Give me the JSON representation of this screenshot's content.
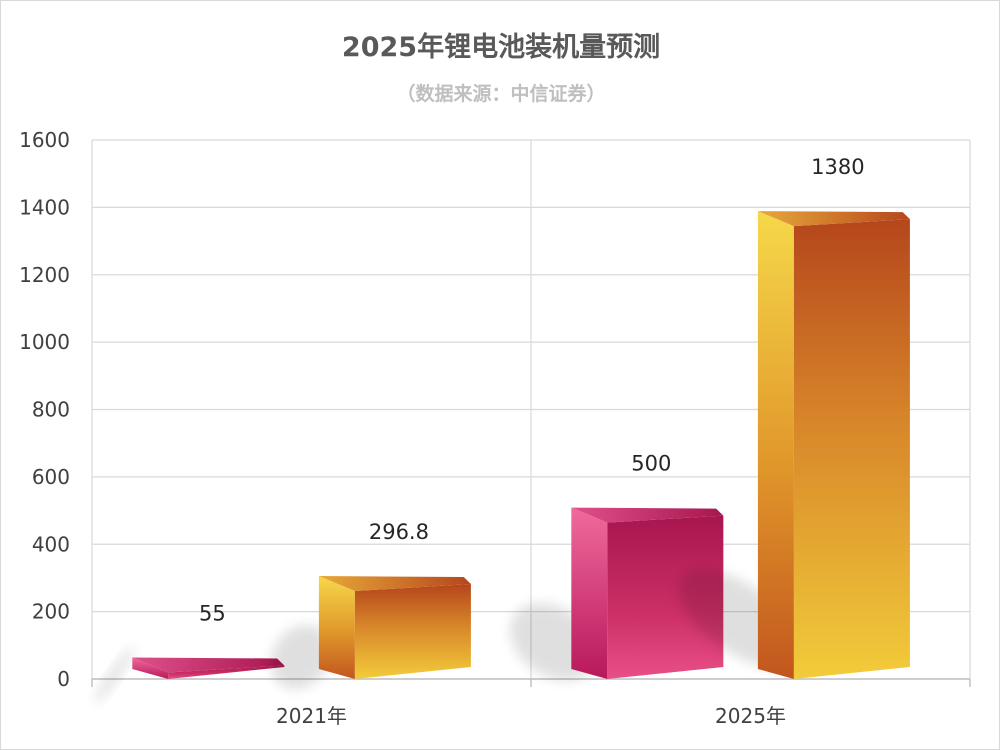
{
  "chart_data": {
    "type": "bar",
    "title": "2025年锂电池装机量预测",
    "subtitle": "（数据来源：中信证券）",
    "categories": [
      "2021年",
      "2025年"
    ],
    "series": [
      {
        "values": [
          55,
          500
        ],
        "color": "#d6336c"
      },
      {
        "values": [
          296.8,
          1380
        ],
        "color": "#e08a2a"
      }
    ],
    "value_labels": [
      [
        "55",
        "500"
      ],
      [
        "296.8",
        "1380"
      ]
    ],
    "ylim": [
      0,
      1600
    ],
    "yticks": [
      0,
      200,
      400,
      600,
      800,
      1000,
      1200,
      1400,
      1600
    ],
    "grid": true,
    "style": "3d-prism-bars"
  }
}
